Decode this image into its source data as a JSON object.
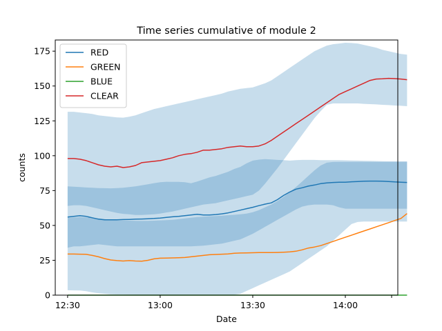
{
  "chart_data": {
    "type": "line",
    "title": "Time series cumulative of module 2",
    "xlabel": "Date",
    "ylabel": "counts",
    "x_ticks": [
      "12:30",
      "13:00",
      "13:30",
      "14:00",
      ""
    ],
    "x_tick_minutes": [
      0,
      30,
      60,
      90,
      105
    ],
    "x_range_minutes": [
      -4,
      107
    ],
    "y_ticks": [
      "0",
      "25",
      "50",
      "75",
      "100",
      "125",
      "150",
      "175"
    ],
    "ylim": [
      0,
      183
    ],
    "grid": false,
    "legend_position": "top-left",
    "x": [
      "12:30",
      "12:32",
      "12:34",
      "12:36",
      "12:38",
      "12:40",
      "12:42",
      "12:44",
      "12:46",
      "12:48",
      "12:50",
      "12:52",
      "12:54",
      "12:56",
      "12:58",
      "13:00",
      "13:02",
      "13:04",
      "13:06",
      "13:08",
      "13:10",
      "13:12",
      "13:14",
      "13:16",
      "13:18",
      "13:20",
      "13:22",
      "13:24",
      "13:26",
      "13:28",
      "13:30",
      "13:32",
      "13:34",
      "13:36",
      "13:38",
      "13:40",
      "13:42",
      "13:44",
      "13:46",
      "13:48",
      "13:50",
      "13:52",
      "13:54",
      "13:56",
      "13:58",
      "14:00",
      "14:02",
      "14:04",
      "14:06",
      "14:08",
      "14:10",
      "14:12",
      "14:14",
      "14:16",
      "14:18",
      "14:20"
    ],
    "series": [
      {
        "name": "RED",
        "color": "#1f77b4",
        "values": [
          56,
          56.5,
          57,
          56.5,
          55.5,
          54.5,
          54,
          54,
          54,
          54.2,
          54.3,
          54.5,
          54.6,
          54.8,
          55,
          55.3,
          55.8,
          56.2,
          56.5,
          57,
          57.5,
          58,
          57.5,
          57.5,
          57.8,
          58.3,
          59,
          60,
          61,
          62,
          63,
          64.2,
          65.3,
          66.2,
          68.5,
          71.5,
          74,
          76,
          77,
          78.2,
          79,
          80,
          80.5,
          80.8,
          81,
          81,
          81.3,
          81.5,
          81.7,
          81.8,
          81.8,
          81.7,
          81.5,
          81.2,
          81,
          80.8
        ],
        "band_lower": [
          34,
          35,
          35,
          35.5,
          36,
          36.5,
          36,
          35.5,
          35,
          35,
          35,
          35,
          35,
          35,
          35,
          35,
          35,
          35,
          35,
          35,
          35,
          35.2,
          35.5,
          36,
          36.5,
          37,
          38,
          39,
          40,
          42,
          44,
          46.5,
          49,
          51.5,
          54,
          56.5,
          59,
          61.5,
          63.5,
          64.5,
          65,
          65,
          65,
          64.5,
          63,
          62,
          62,
          62,
          62,
          62,
          62,
          62,
          62,
          62,
          62,
          62
        ],
        "band_upper": [
          78,
          77.8,
          77.5,
          77.2,
          77,
          76.8,
          76.7,
          76.6,
          76.8,
          77,
          77.5,
          78,
          78.8,
          79.5,
          80.3,
          81,
          81.3,
          81.2,
          81.2,
          81,
          80.2,
          81.5,
          83,
          84.5,
          85.5,
          87,
          88.5,
          90.5,
          92,
          94.5,
          96.5,
          97.2,
          97.6,
          97.3,
          97,
          96.8,
          96.5,
          96.8,
          97,
          97,
          97,
          96.8,
          96.8,
          96.8,
          96.8,
          96.7,
          96.6,
          96.5,
          96.4,
          96.3,
          96.2,
          96.1,
          96,
          96,
          96,
          96
        ]
      },
      {
        "name": "GREEN",
        "color": "#ff7f0e",
        "values": [
          29.5,
          29.5,
          29.4,
          29.3,
          28.5,
          27.5,
          26.2,
          25.2,
          24.8,
          24.5,
          24.8,
          24.5,
          24.4,
          25,
          26,
          26.5,
          26.6,
          26.7,
          26.8,
          27,
          27.5,
          28,
          28.5,
          29,
          29.2,
          29.4,
          29.6,
          30,
          30.2,
          30.3,
          30.4,
          30.5,
          30.5,
          30.5,
          30.6,
          30.8,
          31,
          31.5,
          32.5,
          33.8,
          34.5,
          35.5,
          37,
          38.5,
          40,
          41.5,
          43,
          44.5,
          46,
          47.5,
          49,
          50.5,
          52,
          53.5,
          55,
          58.5
        ],
        "band_lower": [
          3.5,
          3.4,
          3.3,
          2.8,
          2,
          1.4,
          1,
          0.6,
          0.5,
          0.5,
          0.4,
          0.3,
          0.3,
          0.3,
          0.3,
          0.3,
          0.3,
          0.3,
          0.3,
          0.3,
          0.3,
          0.3,
          0.3,
          0.3,
          0.3,
          0.3,
          0.3,
          0.3,
          1,
          3,
          5,
          7,
          9,
          11,
          13,
          15,
          17,
          20,
          23,
          26,
          29,
          32,
          35,
          39,
          43,
          47,
          51,
          52.5,
          52.8,
          52.8,
          52.8,
          52.8,
          52.8,
          52.8,
          52.8,
          52.8
        ],
        "band_upper": [
          55.5,
          55.8,
          56,
          55.8,
          55.5,
          55,
          54.5,
          54,
          53.6,
          53.5,
          53.4,
          53.3,
          53.2,
          53.3,
          53.4,
          53.6,
          53.8,
          54,
          54.5,
          55,
          55.5,
          56,
          56.3,
          56.6,
          56.8,
          57,
          57.3,
          57.6,
          58,
          58.5,
          59.5,
          61,
          63,
          65,
          67.5,
          70.5,
          74,
          77.5,
          81.5,
          85.5,
          89.5,
          93,
          95,
          95.5,
          95.6,
          95.6,
          95.6,
          95.6,
          95.6,
          95.6,
          95.6,
          95.6,
          95.6,
          95.6,
          95.6,
          95.6
        ]
      },
      {
        "name": "BLUE",
        "color": "#2ca02c",
        "values": [
          0,
          0,
          0,
          0,
          0,
          0,
          0,
          0,
          0,
          0,
          0,
          0,
          0,
          0,
          0,
          0,
          0,
          0,
          0,
          0,
          0,
          0,
          0,
          0,
          0,
          0,
          0,
          0,
          0,
          0,
          0,
          0,
          0,
          0,
          0,
          0,
          0,
          0,
          0,
          0,
          0,
          0,
          0,
          0,
          0,
          0,
          0,
          0,
          0,
          0,
          0,
          0,
          0,
          0,
          0,
          0
        ]
      },
      {
        "name": "CLEAR",
        "color": "#d62728",
        "values": [
          98,
          98,
          97.5,
          96.5,
          95,
          93.5,
          92.5,
          92,
          92.5,
          91.5,
          92,
          93,
          95,
          95.5,
          96,
          96.5,
          97.5,
          98.5,
          100,
          101,
          101.5,
          102.5,
          104,
          104,
          104.5,
          105,
          106,
          106.5,
          107,
          106.5,
          106.5,
          107,
          108.5,
          111,
          114,
          117,
          120,
          123,
          126,
          129,
          132,
          135,
          138,
          141,
          144,
          146,
          148,
          150,
          152,
          154,
          155,
          155.2,
          155.5,
          155.3,
          155,
          154.5
        ],
        "band_lower": [
          64,
          64.5,
          64.5,
          64,
          63,
          62,
          61,
          60,
          59,
          58.3,
          58,
          57.5,
          57.5,
          57.7,
          58,
          58.5,
          59.3,
          60,
          61,
          62,
          63,
          64,
          65,
          65.5,
          66,
          67,
          68,
          69,
          70,
          71,
          72,
          75,
          80,
          85.5,
          91,
          97,
          103,
          109,
          115,
          121,
          127,
          132,
          136.5,
          137.5,
          137.5,
          137.5,
          137.5,
          137.5,
          137.2,
          137,
          136.8,
          136.5,
          136.3,
          136,
          135.8,
          135.5
        ],
        "band_upper": [
          131.5,
          131.5,
          131,
          130.5,
          130,
          129,
          128.5,
          128,
          127.5,
          127.3,
          128,
          129,
          130.5,
          132,
          133.5,
          134.5,
          135.5,
          136.5,
          137.5,
          138.5,
          139.5,
          140.5,
          141.5,
          142.5,
          143.5,
          144.5,
          146,
          147,
          148,
          148.5,
          149,
          150.5,
          152,
          154,
          157,
          160,
          163,
          166,
          169,
          172,
          175,
          177,
          179,
          180,
          180.5,
          181,
          180.8,
          180.5,
          179.5,
          178.5,
          177.5,
          176,
          175,
          174,
          173,
          172.5
        ]
      }
    ]
  }
}
